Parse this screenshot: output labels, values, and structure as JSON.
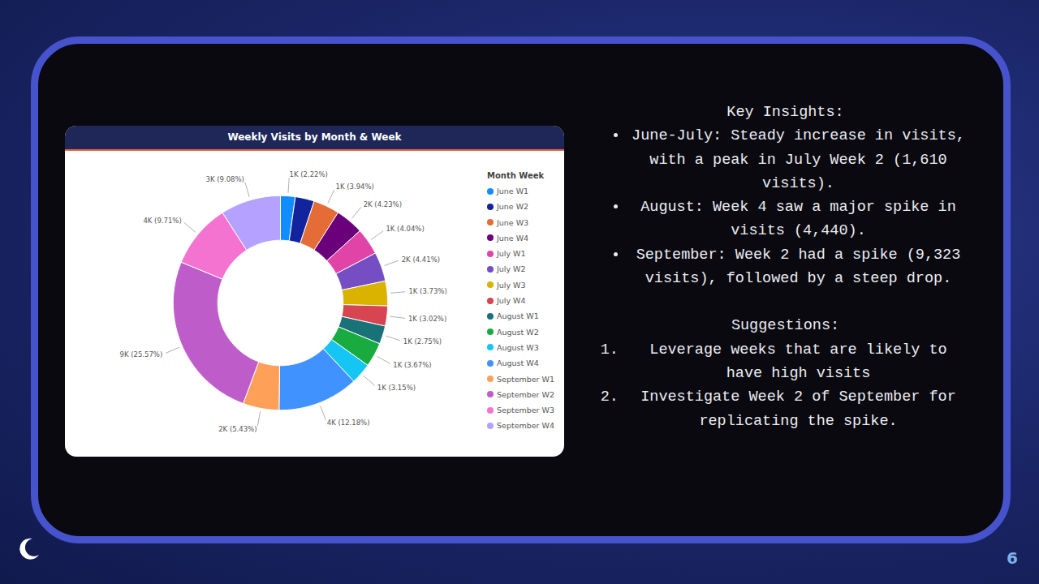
{
  "chart_data": {
    "type": "pie",
    "title": "Weekly Visits by Month & Week",
    "legend_title": "Month Week",
    "legend": "right",
    "data_labels": true,
    "categories": [
      "June W1",
      "June W2",
      "June W3",
      "June W4",
      "July W1",
      "July W2",
      "July W3",
      "July W4",
      "August W1",
      "August W2",
      "August W3",
      "August W4",
      "September W1",
      "September W2",
      "September W3",
      "September W4"
    ],
    "values": [
      2.22,
      2.87,
      3.94,
      4.23,
      4.04,
      4.41,
      3.73,
      3.02,
      2.75,
      3.67,
      3.15,
      12.18,
      5.43,
      25.57,
      9.71,
      9.08
    ],
    "value_labels": [
      "1K (2.22%)",
      null,
      "1K (3.94%)",
      "2K (4.23%)",
      "1K (4.04%)",
      "2K (4.41%)",
      "1K (3.73%)",
      "1K (3.02%)",
      "1K (2.75%)",
      "1K (3.67%)",
      "1K (3.15%)",
      "4K (12.18%)",
      "2K (5.43%)",
      "9K (25.57%)",
      "4K (9.71%)",
      "3K (9.08%)"
    ],
    "colors": [
      "#118DFF",
      "#12239E",
      "#E66C37",
      "#6B007B",
      "#E044A7",
      "#744EC2",
      "#D9B300",
      "#D64550",
      "#197278",
      "#1AAB40",
      "#15C6F4",
      "#4092FF",
      "#FFA058",
      "#BE5DC9",
      "#F472D0",
      "#B5A1FF"
    ]
  },
  "slide": {
    "insights_title": "Key Insights:",
    "insights": [
      "June-July: Steady increase in visits, with a peak in July Week 2 (1,610 visits).",
      "August: Week 4 saw a major spike in visits (4,440).",
      "September: Week 2 had a spike (9,323 visits), followed by a steep drop."
    ],
    "suggestions_title": "Suggestions:",
    "suggestions": [
      "Leverage weeks that are likely to have high visits",
      "Investigate Week 2 of September for replicating the spike."
    ],
    "page_number": "6"
  }
}
